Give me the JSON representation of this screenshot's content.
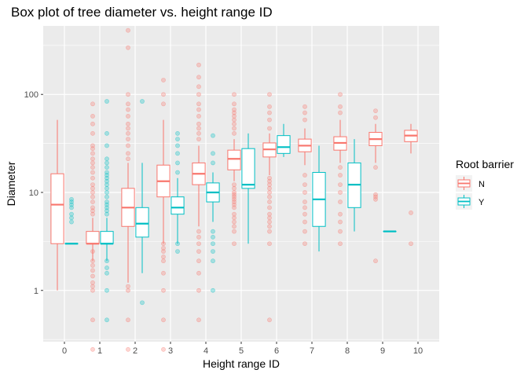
{
  "chart_data": {
    "type": "box",
    "title": "Box plot of tree diameter vs. height range ID",
    "xlabel": "Height range ID",
    "ylabel": "Diameter",
    "y_scale": "log10",
    "ylim": [
      0.3,
      500
    ],
    "yticks": [
      1,
      10,
      100
    ],
    "ytick_labels": [
      "1",
      "10",
      "100"
    ],
    "categories": [
      "0",
      "1",
      "2",
      "3",
      "4",
      "5",
      "6",
      "7",
      "8",
      "9",
      "10"
    ],
    "grid": true,
    "legend": {
      "title": "Root barrier",
      "position": "right"
    },
    "series": [
      {
        "name": "N",
        "color": "#F8766D",
        "boxes": [
          {
            "x": "0",
            "lw": 1,
            "q1": 3,
            "med": 7.5,
            "q3": 15.5,
            "uw": 55,
            "out": []
          },
          {
            "x": "1",
            "lw": 2,
            "q1": 3,
            "med": 3,
            "q3": 4,
            "uw": 5.5,
            "out": [
              0.25,
              0.5,
              1,
              1.1,
              1.2,
              1.4,
              1.6,
              1.8,
              2,
              2.5,
              6,
              6.5,
              7,
              8,
              9,
              10,
              11,
              12,
              14,
              16,
              18,
              20,
              22,
              25,
              28,
              30,
              40,
              50,
              60,
              80
            ]
          },
          {
            "x": "2",
            "lw": 1.2,
            "q1": 4.5,
            "med": 7,
            "q3": 11,
            "uw": 20,
            "out": [
              0.25,
              0.5,
              1,
              1.1,
              22,
              25,
              30,
              35,
              40,
              45,
              50,
              60,
              70,
              80,
              100,
              300,
              450
            ]
          },
          {
            "x": "3",
            "lw": 3,
            "q1": 9,
            "med": 13,
            "q3": 19,
            "uw": 55,
            "out": [
              0.25,
              0.5,
              1,
              1.5,
              2,
              2.2,
              2.5,
              2.7,
              3,
              80,
              100,
              140
            ]
          },
          {
            "x": "4",
            "lw": 4.5,
            "q1": 12,
            "med": 15.5,
            "q3": 20,
            "uw": 30,
            "out": [
              0.5,
              1,
              1.5,
              2,
              2.5,
              3,
              3.5,
              4,
              35,
              40,
              45,
              50,
              60,
              70,
              80,
              100,
              120,
              150,
              200
            ]
          },
          {
            "x": "5",
            "lw": 13,
            "q1": 17,
            "med": 22,
            "q3": 27,
            "uw": 35,
            "out": [
              3,
              4,
              4.5,
              5,
              5.5,
              6,
              7,
              7.5,
              8,
              8.5,
              9,
              9.5,
              10,
              11,
              12,
              40,
              45,
              50,
              55,
              60,
              65,
              70,
              80,
              100
            ]
          },
          {
            "x": "6",
            "lw": 15,
            "q1": 23,
            "med": 27.5,
            "q3": 32,
            "uw": 40,
            "out": [
              0.5,
              3,
              4,
              4.5,
              5,
              5.5,
              6,
              7,
              8,
              9,
              10,
              11,
              12,
              13,
              14,
              45,
              55,
              65,
              75,
              100
            ]
          },
          {
            "x": "7",
            "lw": 19,
            "q1": 26,
            "med": 30,
            "q3": 35,
            "uw": 45,
            "out": [
              3,
              4,
              5,
              6,
              7,
              8,
              10,
              12,
              15,
              55,
              65,
              75
            ]
          },
          {
            "x": "8",
            "lw": 20,
            "q1": 27,
            "med": 32,
            "q3": 37,
            "uw": 55,
            "out": [
              3,
              4,
              5,
              6,
              8,
              10,
              12,
              15,
              18,
              65,
              75,
              100
            ]
          },
          {
            "x": "9",
            "lw": 20,
            "q1": 30,
            "med": 35,
            "q3": 41,
            "uw": 50,
            "out": [
              2,
              8.5,
              9,
              9.5,
              18,
              58,
              68
            ]
          },
          {
            "x": "10",
            "lw": 25,
            "q1": 33,
            "med": 38,
            "q3": 43,
            "uw": 50,
            "out": [
              3,
              6.2
            ]
          }
        ]
      },
      {
        "name": "Y",
        "color": "#00BFC4",
        "boxes": [
          {
            "x": "0",
            "lw": 3,
            "q1": 3,
            "med": 3,
            "q3": 3,
            "uw": 3,
            "out": [
              5,
              5.5,
              6,
              7,
              7.5,
              8,
              8.5
            ]
          },
          {
            "x": "1",
            "lw": 2,
            "q1": 3,
            "med": 3,
            "q3": 4,
            "uw": 5.5,
            "out": [
              0.5,
              1,
              1.5,
              1.7,
              2,
              6,
              6.5,
              7,
              7.5,
              8,
              9,
              10,
              11,
              12,
              13,
              14,
              15,
              16,
              18,
              20,
              22,
              30,
              40,
              85
            ]
          },
          {
            "x": "2",
            "lw": 1.5,
            "q1": 3.5,
            "med": 4.8,
            "q3": 7,
            "uw": 20,
            "out": [
              0.75,
              85
            ]
          },
          {
            "x": "3",
            "lw": 3,
            "q1": 6,
            "med": 7,
            "q3": 9,
            "uw": 14,
            "out": [
              2.5,
              3,
              16,
              20,
              25,
              30,
              35,
              40
            ]
          },
          {
            "x": "4",
            "lw": 5,
            "q1": 8,
            "med": 10,
            "q3": 12.5,
            "uw": 16,
            "out": [
              1,
              2,
              2.5,
              3,
              3.5,
              4,
              20,
              25,
              38
            ]
          },
          {
            "x": "5",
            "lw": 3,
            "q1": 11,
            "med": 12,
            "q3": 28,
            "uw": 40,
            "out": []
          },
          {
            "x": "6",
            "lw": 23,
            "q1": 25,
            "med": 29,
            "q3": 38,
            "uw": 50,
            "out": []
          },
          {
            "x": "7",
            "lw": 2.5,
            "q1": 4.5,
            "med": 8.5,
            "q3": 16,
            "uw": 30,
            "out": []
          },
          {
            "x": "8",
            "lw": 4,
            "q1": 7,
            "med": 12,
            "q3": 20,
            "uw": 35,
            "out": []
          },
          {
            "x": "9",
            "lw": 4,
            "q1": 4,
            "med": 4,
            "q3": 4,
            "uw": 4,
            "out": []
          }
        ]
      }
    ]
  }
}
